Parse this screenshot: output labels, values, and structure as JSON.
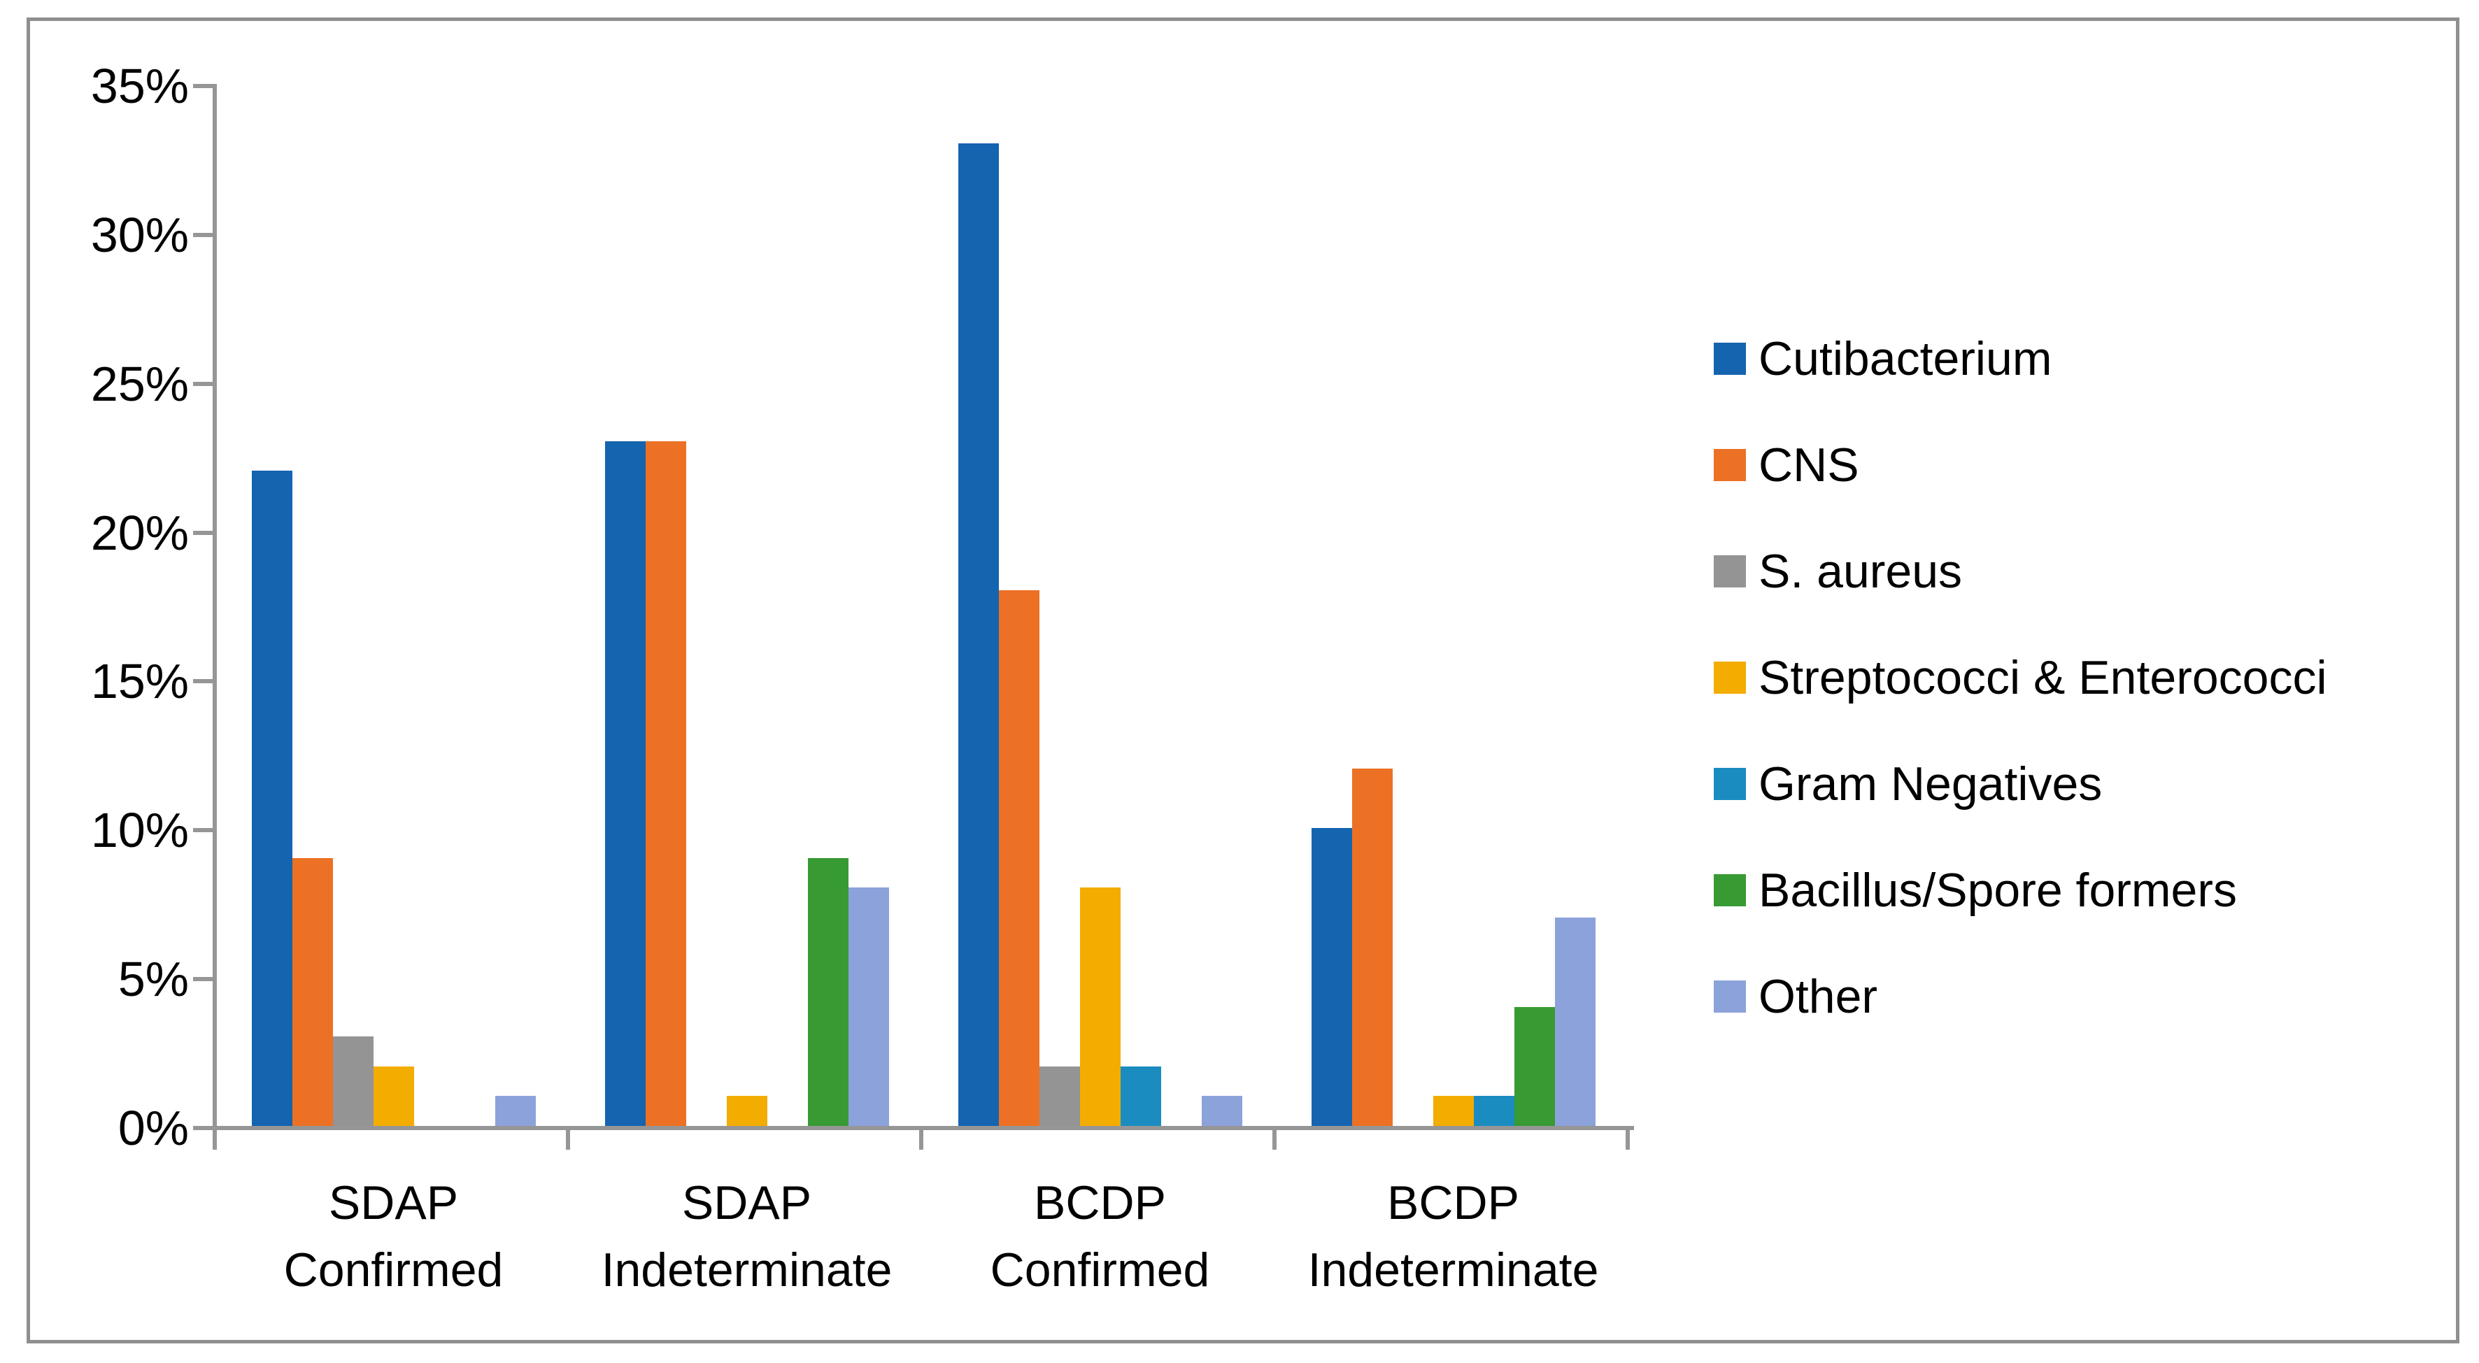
{
  "figure": {
    "background_color": "#ffffff",
    "frame_color": "#8f8f8f",
    "axis_color": "#969696",
    "text_color": "#000000"
  },
  "chart_data": {
    "type": "bar",
    "title": "",
    "xlabel": "",
    "ylabel": "",
    "ylim": [
      0,
      35
    ],
    "ytick_step": 5,
    "ytick_labels": [
      "0%",
      "5%",
      "10%",
      "15%",
      "20%",
      "25%",
      "30%",
      "35%"
    ],
    "grid": false,
    "legend_position": "right",
    "categories": [
      {
        "line1": "SDAP",
        "line2": "Confirmed"
      },
      {
        "line1": "SDAP",
        "line2": "Indeterminate"
      },
      {
        "line1": "BCDP",
        "line2": "Confirmed"
      },
      {
        "line1": "BCDP",
        "line2": "Indeterminate"
      }
    ],
    "series": [
      {
        "name": "Cutibacterium",
        "color": "#1464af",
        "values": [
          22,
          23,
          33,
          10
        ]
      },
      {
        "name": "CNS",
        "color": "#ec7124",
        "values": [
          9,
          23,
          18,
          12
        ]
      },
      {
        "name": "S. aureus",
        "color": "#949494",
        "values": [
          3,
          0,
          2,
          0
        ]
      },
      {
        "name": "Streptococci & Enterococci",
        "color": "#f3ac00",
        "values": [
          2,
          1,
          8,
          1
        ]
      },
      {
        "name": "Gram Negatives",
        "color": "#1a8cc0",
        "values": [
          0,
          0,
          2,
          1
        ]
      },
      {
        "name": "Bacillus/Spore formers",
        "color": "#389a32",
        "values": [
          0,
          9,
          0,
          4
        ]
      },
      {
        "name": "Other",
        "color": "#8ca2da",
        "values": [
          1,
          8,
          1,
          7
        ]
      }
    ]
  }
}
